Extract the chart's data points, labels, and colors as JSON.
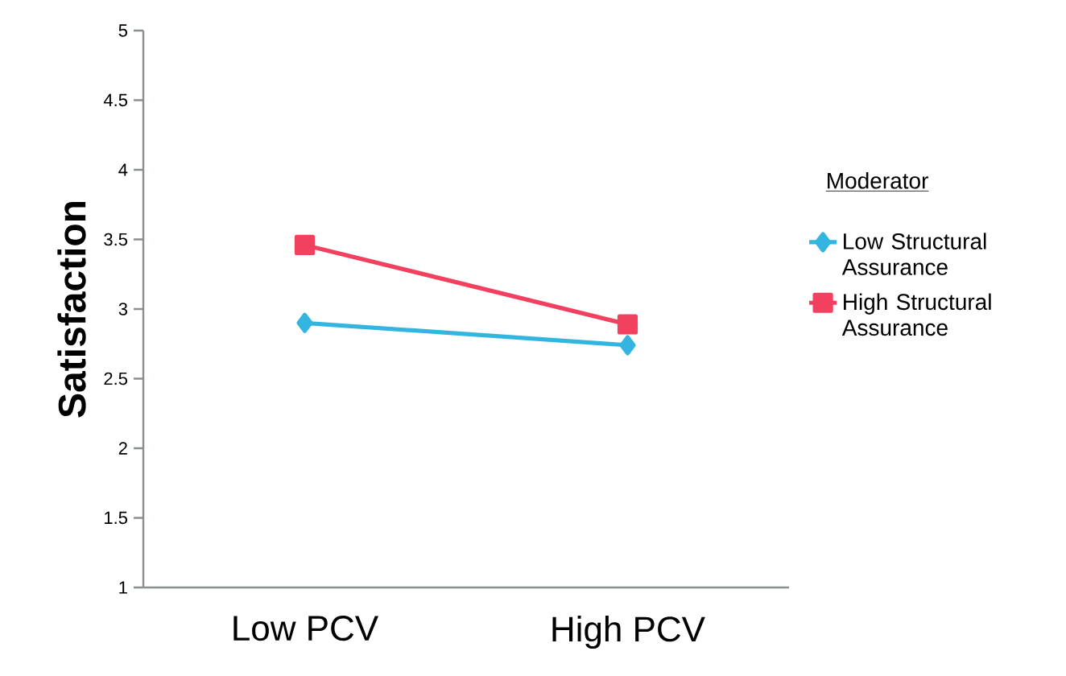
{
  "chart_data": {
    "type": "line",
    "categories": [
      "Low PCV",
      "High PCV"
    ],
    "ylabel": "Satisfaction",
    "legend_title": "Moderator",
    "series": [
      {
        "name": "Low Structural Assurance",
        "color": "#33b5e0",
        "values": [
          2.9,
          2.74
        ],
        "marker": "diamond"
      },
      {
        "name": "High Structural Assurance",
        "color": "#f2405f",
        "values": [
          3.46,
          2.89
        ],
        "marker": "square"
      }
    ],
    "ylim": [
      1,
      5
    ],
    "yticks": [
      1,
      1.5,
      2,
      2.5,
      3,
      3.5,
      4,
      4.5,
      5
    ],
    "legend": "right",
    "grid": false,
    "line_style": "solid"
  }
}
